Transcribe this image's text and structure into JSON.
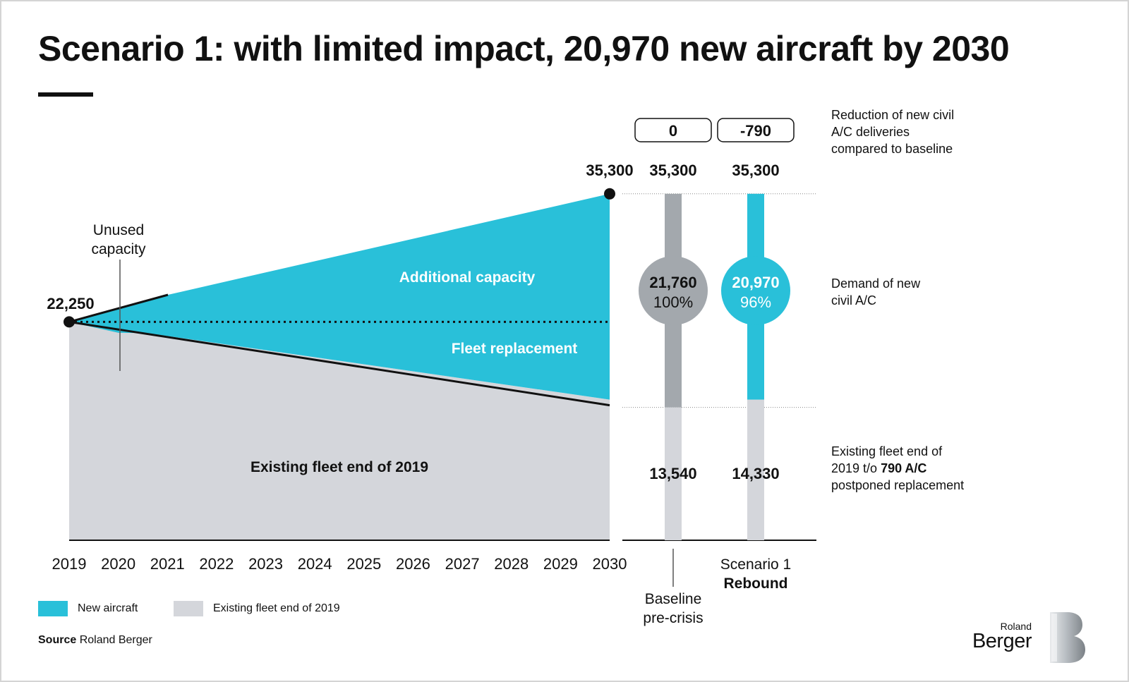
{
  "title": "Scenario 1: with limited impact, 20,970 new aircraft by 2030",
  "chart_data": {
    "type": "area",
    "x_ticks": [
      "2019",
      "2020",
      "2021",
      "2022",
      "2023",
      "2024",
      "2025",
      "2026",
      "2027",
      "2028",
      "2029",
      "2030"
    ],
    "start_value": 22250,
    "start_label": "22,250",
    "end_value": 35300,
    "end_label": "35,300",
    "existing_fleet_2019": 22250,
    "existing_fleet_2020": 21150,
    "existing_fleet_2030_baseline": 13540,
    "existing_fleet_2030_scenario": 14330,
    "area_labels": {
      "additional": "Additional capacity",
      "fleet_replacement": "Fleet replacement",
      "existing": "Existing fleet end of 2019",
      "unused": "Unused capacity"
    },
    "bars": [
      {
        "id": "baseline",
        "label_line1": "Baseline",
        "label_line2": "pre-crisis",
        "total": 35300,
        "total_label": "35,300",
        "existing": 13540,
        "existing_label": "13,540",
        "new_aircraft": 21760,
        "new_label": "21,760",
        "pct_label": "100%",
        "reduction_label": "0",
        "color": "#a3a8ad"
      },
      {
        "id": "scenario1",
        "label_line1": "Scenario 1",
        "label_line2": "Rebound",
        "total": 35300,
        "total_label": "35,300",
        "existing": 14330,
        "existing_label": "14,330",
        "new_aircraft": 20970,
        "new_label": "20,970",
        "pct_label": "96%",
        "reduction_label": "-790",
        "color": "#29c0d9"
      }
    ],
    "side_notes": {
      "reduction": [
        "Reduction of new civil",
        "A/C deliveries",
        "compared to baseline"
      ],
      "demand": [
        "Demand of new",
        "civil A/C"
      ],
      "existing_line1": "Existing fleet end of",
      "existing_line2_prefix": "2019 t/o ",
      "existing_line2_bold": "790 A/C",
      "existing_line3": "postponed replacement"
    },
    "colors": {
      "new_aircraft": "#29c0d9",
      "existing_fleet": "#d4d6db",
      "unused_capacity": "#878c91",
      "baseline_bar": "#a3a8ad",
      "line": "#111111"
    }
  },
  "legend": [
    {
      "label": "New aircraft",
      "color": "#29c0d9"
    },
    {
      "label": "Existing fleet end of 2019",
      "color": "#d4d6db"
    }
  ],
  "source": {
    "label": "Source",
    "text": "Roland Berger"
  },
  "logo": {
    "top": "Roland",
    "bottom": "Berger"
  }
}
